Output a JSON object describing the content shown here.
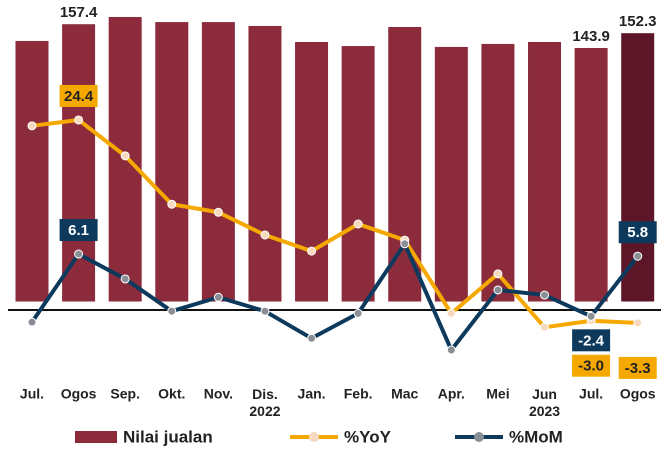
{
  "chart_data": {
    "type": "bar-line",
    "categories": [
      "Jul.",
      "Ogos",
      "Sep.",
      "Okt.",
      "Nov.",
      "Dis.\n2022",
      "Jan.",
      "Feb.",
      "Mac",
      "Apr.",
      "Mei",
      "Jun\n2023",
      "Jul.",
      "Ogos"
    ],
    "ylim": [
      -40,
      170
    ],
    "y2lim": [
      -10,
      40.5
    ],
    "series": [
      {
        "name": "Nilai jualan",
        "type": "bar",
        "color": "#8b2b3c",
        "colors": [
          "#8b2b3c",
          "#8b2b3c",
          "#8b2b3c",
          "#8b2b3c",
          "#8b2b3c",
          "#8b2b3c",
          "#8b2b3c",
          "#8b2b3c",
          "#8b2b3c",
          "#8b2b3c",
          "#8b2b3c",
          "#8b2b3c",
          "#8b2b3c",
          "#5c1628"
        ],
        "values": [
          147.9,
          157.4,
          161.5,
          158.6,
          158.6,
          156.4,
          147.3,
          145.0,
          155.8,
          144.5,
          146.2,
          147.3,
          143.9,
          152.3
        ],
        "value_labels": [
          null,
          "157.4",
          null,
          null,
          null,
          null,
          null,
          null,
          null,
          null,
          null,
          null,
          "143.9",
          "152.3"
        ]
      },
      {
        "name": "%YoY",
        "type": "line",
        "axis": "y2",
        "color": "#f5a800",
        "marker_color": "#f7d9c0",
        "values": [
          23.6,
          24.4,
          19.5,
          12.9,
          11.8,
          8.7,
          6.5,
          10.2,
          8.0,
          -2.0,
          3.4,
          -3.9,
          -3.0,
          -3.3
        ],
        "value_labels": [
          null,
          "24.4",
          null,
          null,
          null,
          null,
          null,
          null,
          null,
          null,
          null,
          null,
          "-3.0",
          "-3.3"
        ]
      },
      {
        "name": "%MoM",
        "type": "line",
        "axis": "y2",
        "color": "#0d3a5c",
        "marker_color": "#8a8f96",
        "values": [
          -3.2,
          6.1,
          2.7,
          -1.7,
          0.2,
          -1.7,
          -5.4,
          -2.0,
          7.5,
          -7.0,
          1.2,
          0.5,
          -2.4,
          5.8
        ],
        "value_labels": [
          null,
          "6.1",
          null,
          null,
          null,
          null,
          null,
          null,
          null,
          null,
          null,
          null,
          "-2.4",
          "5.8"
        ]
      }
    ]
  }
}
